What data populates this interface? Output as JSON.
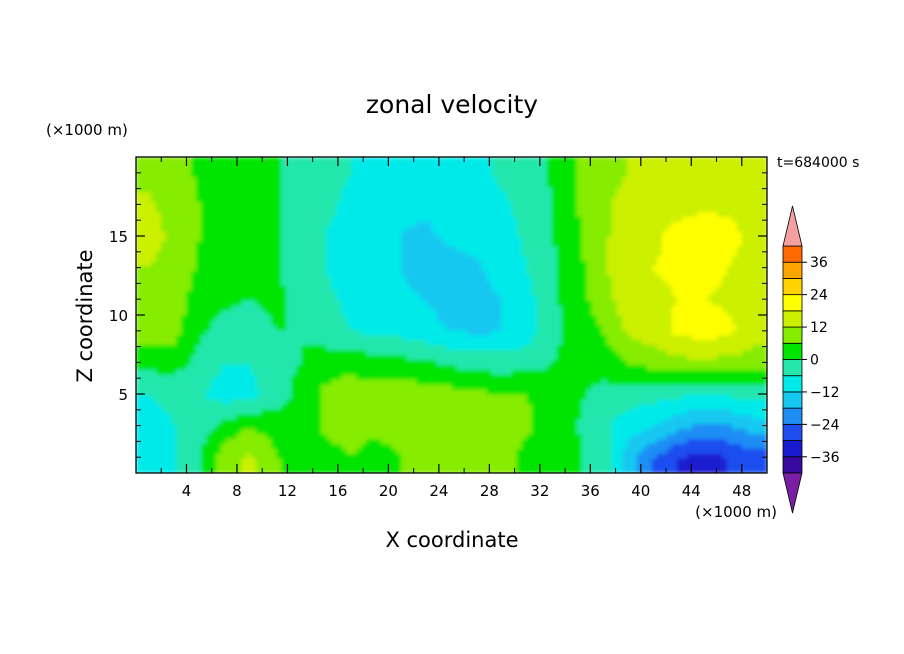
{
  "chart_data": {
    "type": "heatmap",
    "title": "zonal velocity",
    "xlabel": "X coordinate",
    "ylabel": "Z coordinate",
    "x_unit": "(×1000 m)",
    "y_unit": "(×1000 m)",
    "time_label": "t=684000 s",
    "xlim": [
      0,
      50
    ],
    "ylim": [
      0,
      20
    ],
    "x_ticks": [
      "4",
      "8",
      "12",
      "16",
      "20",
      "24",
      "28",
      "32",
      "36",
      "40",
      "44",
      "48"
    ],
    "y_ticks": [
      "5",
      "10",
      "15"
    ],
    "colorbar": {
      "levels": [
        -42,
        -36,
        -30,
        -24,
        -18,
        -12,
        -6,
        0,
        6,
        12,
        18,
        24,
        30,
        36,
        42
      ],
      "colors": [
        "#7a1fa2",
        "#3a0aa0",
        "#1a1ad0",
        "#1e4ef0",
        "#1e8ef5",
        "#14c8f0",
        "#00eaea",
        "#24e7ad",
        "#00e500",
        "#86ec00",
        "#cbf000",
        "#ffff00",
        "#ffd200",
        "#ffa500",
        "#ff6a00",
        "#ff1a00",
        "#f5a0a0"
      ],
      "tick_labels": [
        "36",
        "24",
        "12",
        "0",
        "−12",
        "−24",
        "−36"
      ],
      "extend": "both"
    },
    "field": {
      "nx": 25,
      "nz": 10,
      "x": [
        1,
        3,
        5,
        7,
        9,
        11,
        13,
        15,
        17,
        19,
        21,
        23,
        25,
        27,
        29,
        31,
        33,
        35,
        37,
        39,
        41,
        43,
        45,
        47,
        49
      ],
      "z": [
        1,
        3,
        5,
        7,
        9,
        11,
        13,
        15,
        17,
        19
      ],
      "values": [
        [
          -9,
          -7,
          0,
          9,
          13,
          7,
          1,
          4,
          6,
          4,
          6,
          9,
          10,
          10,
          8,
          4,
          3,
          1,
          -3,
          -15,
          -24,
          -30,
          -32,
          -30,
          -27
        ],
        [
          -8,
          -6,
          -3,
          2,
          6,
          3,
          2,
          7,
          8,
          7,
          8,
          9,
          10,
          9,
          9,
          7,
          3,
          0,
          -5,
          -9,
          -12,
          -16,
          -20,
          -18,
          -15
        ],
        [
          -6,
          -5,
          -5,
          -9,
          -8,
          -3,
          2,
          7,
          9,
          8,
          9,
          9,
          8,
          7,
          6,
          6,
          3,
          1,
          -2,
          -3,
          -4,
          -5,
          -6,
          -5,
          -4
        ],
        [
          2,
          3,
          -2,
          -6,
          -6,
          -2,
          0,
          4,
          4,
          3,
          2,
          1,
          -1,
          -2,
          -3,
          -2,
          0,
          1,
          3,
          6,
          8,
          10,
          11,
          10,
          8
        ],
        [
          10,
          8,
          1,
          -2,
          -3,
          0,
          0,
          -4,
          -6,
          -7,
          -8,
          -10,
          -12,
          -13,
          -12,
          -9,
          -1,
          2,
          6,
          13,
          16,
          19,
          21,
          19,
          16
        ],
        [
          11,
          9,
          3,
          1,
          0,
          1,
          -1,
          -5,
          -7,
          -9,
          -11,
          -12,
          -15,
          -14,
          -12,
          -8,
          -1,
          3,
          10,
          15,
          17,
          18,
          18,
          17,
          14
        ],
        [
          12,
          10,
          5,
          3,
          1,
          1,
          -3,
          -6,
          -8,
          -10,
          -12,
          -15,
          -14,
          -13,
          -9,
          -6,
          -1,
          4,
          11,
          16,
          18,
          19,
          20,
          18,
          14
        ],
        [
          14,
          11,
          6,
          4,
          1,
          1,
          -3,
          -6,
          -8,
          -10,
          -12,
          -13,
          -11,
          -10,
          -8,
          -5,
          0,
          5,
          11,
          15,
          17,
          20,
          22,
          21,
          15
        ],
        [
          13,
          10,
          6,
          4,
          1,
          1,
          -3,
          -5,
          -7,
          -9,
          -11,
          -11,
          -10,
          -9,
          -7,
          -4,
          0,
          6,
          11,
          14,
          15,
          16,
          17,
          16,
          14
        ],
        [
          10,
          9,
          5,
          4,
          1,
          1,
          -2,
          -5,
          -6,
          -8,
          -10,
          -9,
          -8,
          -7,
          -5,
          -3,
          1,
          6,
          10,
          12,
          13,
          14,
          14,
          14,
          13
        ]
      ]
    }
  }
}
